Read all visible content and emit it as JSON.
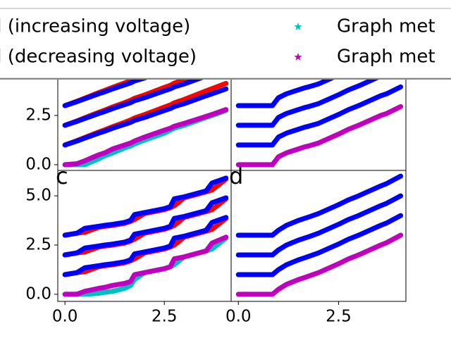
{
  "chart_data": [
    {
      "type": "line",
      "x": [
        0,
        0.3,
        0.5,
        0.85,
        1.0,
        1.2,
        1.5,
        1.65,
        1.75,
        2.0,
        2.5,
        2.65,
        2.75,
        3.0,
        3.55,
        3.7,
        4.05
      ],
      "xlim": [
        -0.18,
        4.18
      ],
      "ylim": [
        -0.29,
        6.36
      ],
      "yticks": [
        {
          "value": 0,
          "label": "0.0"
        },
        2.5
      ],
      "series": [
        {
          "color": "#ff0000",
          "values": [
            3,
            3.22,
            3.38,
            3.66,
            3.77,
            3.93,
            4.15,
            4.27,
            4.37,
            4.54,
            4.92,
            5.03,
            5.14,
            5.31,
            5.75,
            5.86,
            6.13
          ]
        },
        {
          "color": "#ff0000",
          "values": [
            2,
            2.22,
            2.38,
            2.66,
            2.77,
            2.93,
            3.15,
            3.27,
            3.37,
            3.54,
            3.92,
            4.03,
            4.14,
            4.31,
            4.75,
            4.86,
            5.13
          ]
        },
        {
          "color": "#ff0000",
          "values": [
            1,
            1.22,
            1.38,
            1.66,
            1.77,
            1.93,
            2.15,
            2.27,
            2.37,
            2.54,
            2.92,
            3.03,
            3.14,
            3.31,
            3.75,
            3.86,
            4.13
          ]
        },
        {
          "color": "#0000ff",
          "values": [
            3,
            3.2,
            3.35,
            3.6,
            3.7,
            3.85,
            4.05,
            4.15,
            4.25,
            4.4,
            4.75,
            4.85,
            4.95,
            5.1,
            5.5,
            5.6,
            5.85
          ]
        },
        {
          "color": "#0000ff",
          "values": [
            2,
            2.2,
            2.35,
            2.6,
            2.7,
            2.85,
            3.05,
            3.15,
            3.25,
            3.4,
            3.75,
            3.85,
            3.95,
            4.1,
            4.5,
            4.6,
            4.85
          ]
        },
        {
          "color": "#0000ff",
          "values": [
            1,
            1.2,
            1.35,
            1.6,
            1.7,
            1.85,
            2.05,
            2.15,
            2.25,
            2.4,
            2.75,
            2.85,
            2.95,
            3.1,
            3.5,
            3.6,
            3.85
          ]
        },
        {
          "color": "#00bfbf",
          "values": [
            0,
            0,
            0,
            0.3,
            0.45,
            0.6,
            0.85,
            0.95,
            1.05,
            1.25,
            1.6,
            1.75,
            1.85,
            2.0,
            2.4,
            2.5,
            2.75
          ]
        },
        {
          "color": "#bf00bf",
          "values": [
            0,
            0.05,
            0.2,
            0.5,
            0.6,
            0.8,
            1.0,
            1.1,
            1.2,
            1.4,
            1.75,
            1.85,
            1.95,
            2.1,
            2.45,
            2.55,
            2.8
          ]
        }
      ]
    },
    {
      "type": "line",
      "x": [
        0,
        0.3,
        0.5,
        0.85,
        1.0,
        1.2,
        1.5,
        1.65,
        1.75,
        2.0,
        2.5,
        2.65,
        2.75,
        3.0,
        3.55,
        3.7,
        4.05
      ],
      "xlim": [
        -0.18,
        4.18
      ],
      "ylim": [
        -0.29,
        6.36
      ],
      "series": [
        {
          "color": "#0000ff",
          "values": [
            3,
            3,
            3,
            3,
            3.4,
            3.6,
            3.8,
            3.9,
            3.95,
            4.1,
            4.55,
            4.7,
            4.8,
            5.0,
            5.5,
            5.6,
            5.95
          ]
        },
        {
          "color": "#0000ff",
          "values": [
            2,
            2,
            2,
            2,
            2.4,
            2.6,
            2.8,
            2.9,
            2.95,
            3.1,
            3.55,
            3.7,
            3.8,
            4.0,
            4.5,
            4.6,
            4.95
          ]
        },
        {
          "color": "#0000ff",
          "values": [
            1,
            1,
            1,
            1,
            1.4,
            1.6,
            1.8,
            1.9,
            1.95,
            2.1,
            2.55,
            2.7,
            2.8,
            3.0,
            3.5,
            3.6,
            3.95
          ]
        },
        {
          "color": "#bf00bf",
          "values": [
            0,
            0,
            0,
            0,
            0.4,
            0.6,
            0.8,
            0.9,
            0.95,
            1.1,
            1.55,
            1.7,
            1.8,
            2.0,
            2.5,
            2.6,
            2.95
          ]
        }
      ]
    },
    {
      "type": "line",
      "label": "c",
      "x": [
        0,
        0.3,
        0.5,
        0.85,
        1.0,
        1.2,
        1.5,
        1.65,
        1.75,
        2.0,
        2.5,
        2.65,
        2.75,
        3.0,
        3.55,
        3.7,
        4.05
      ],
      "xlim": [
        -0.18,
        4.18
      ],
      "ylim": [
        -0.36,
        6.29
      ],
      "xticks": [
        {
          "value": 0,
          "label": "0.0"
        },
        2.5
      ],
      "yticks": [
        {
          "value": 0,
          "label": "0.0"
        },
        2.5,
        {
          "value": 5,
          "label": "5.0"
        }
      ],
      "series": [
        {
          "color": "#ff0000",
          "values": [
            3,
            3.1,
            3.15,
            3.4,
            3.45,
            3.5,
            3.6,
            3.7,
            3.8,
            4.1,
            4.3,
            4.4,
            4.5,
            4.9,
            5.2,
            5.3,
            5.85
          ]
        },
        {
          "color": "#ff0000",
          "values": [
            2,
            2.1,
            2.15,
            2.4,
            2.45,
            2.5,
            2.6,
            2.7,
            2.8,
            3.1,
            3.3,
            3.4,
            3.5,
            3.9,
            4.2,
            4.3,
            4.85
          ]
        },
        {
          "color": "#ff0000",
          "values": [
            1,
            1.1,
            1.15,
            1.4,
            1.45,
            1.5,
            1.6,
            1.7,
            1.8,
            2.1,
            2.3,
            2.4,
            2.5,
            2.9,
            3.2,
            3.3,
            3.85
          ]
        },
        {
          "color": "#0000ff",
          "values": [
            3,
            3.1,
            3.35,
            3.45,
            3.5,
            3.55,
            3.65,
            3.75,
            4.05,
            4.15,
            4.35,
            4.45,
            4.85,
            4.95,
            5.25,
            5.65,
            5.9
          ]
        },
        {
          "color": "#0000ff",
          "values": [
            2,
            2.1,
            2.35,
            2.45,
            2.5,
            2.55,
            2.65,
            2.75,
            3.05,
            3.15,
            3.35,
            3.45,
            3.85,
            3.95,
            4.25,
            4.65,
            4.9
          ]
        },
        {
          "color": "#0000ff",
          "values": [
            1,
            1.1,
            1.35,
            1.45,
            1.5,
            1.55,
            1.65,
            1.75,
            2.05,
            2.15,
            2.35,
            2.45,
            2.85,
            2.95,
            3.25,
            3.65,
            3.9
          ]
        },
        {
          "color": "#00bfbf",
          "values": [
            0,
            0,
            0,
            0.05,
            0.1,
            0.15,
            0.3,
            0.45,
            0.75,
            1.1,
            1.3,
            1.4,
            1.5,
            1.9,
            2.2,
            2.3,
            2.85
          ]
        },
        {
          "color": "#bf00bf",
          "values": [
            0,
            0,
            0.15,
            0.3,
            0.35,
            0.45,
            0.55,
            0.65,
            1.0,
            1.1,
            1.3,
            1.4,
            1.8,
            1.9,
            2.2,
            2.6,
            2.9
          ]
        }
      ]
    },
    {
      "type": "line",
      "label": "d",
      "x": [
        0,
        0.3,
        0.5,
        0.85,
        1.0,
        1.2,
        1.5,
        1.65,
        1.75,
        2.0,
        2.5,
        2.65,
        2.75,
        3.0,
        3.55,
        3.7,
        4.05
      ],
      "xlim": [
        -0.18,
        4.18
      ],
      "ylim": [
        -0.36,
        6.29
      ],
      "xticks": [
        {
          "value": 0,
          "label": "0.0"
        },
        2.5
      ],
      "series": [
        {
          "color": "#0000ff",
          "values": [
            3,
            3,
            3,
            3,
            3.25,
            3.5,
            3.75,
            3.85,
            3.92,
            4.1,
            4.55,
            4.7,
            4.8,
            5.0,
            5.5,
            5.62,
            6.0
          ]
        },
        {
          "color": "#0000ff",
          "values": [
            2,
            2,
            2,
            2,
            2.25,
            2.5,
            2.75,
            2.85,
            2.92,
            3.1,
            3.55,
            3.7,
            3.8,
            4.0,
            4.5,
            4.62,
            5.0
          ]
        },
        {
          "color": "#0000ff",
          "values": [
            1,
            1,
            1,
            1,
            1.25,
            1.5,
            1.75,
            1.85,
            1.92,
            2.1,
            2.55,
            2.7,
            2.8,
            3.0,
            3.5,
            3.62,
            4.0
          ]
        },
        {
          "color": "#bf00bf",
          "values": [
            0,
            0,
            0,
            0,
            0.25,
            0.5,
            0.75,
            0.85,
            0.92,
            1.1,
            1.55,
            1.7,
            1.8,
            2.0,
            2.5,
            2.62,
            3.0
          ]
        }
      ]
    }
  ],
  "legend": [
    {
      "name": "d (increasing voltage)"
    },
    {
      "name": "d (decreasing voltage)"
    },
    {
      "name": "Graph met",
      "color": "#00bfbf"
    },
    {
      "name": "Graph met",
      "color": "#bf00bf"
    }
  ]
}
